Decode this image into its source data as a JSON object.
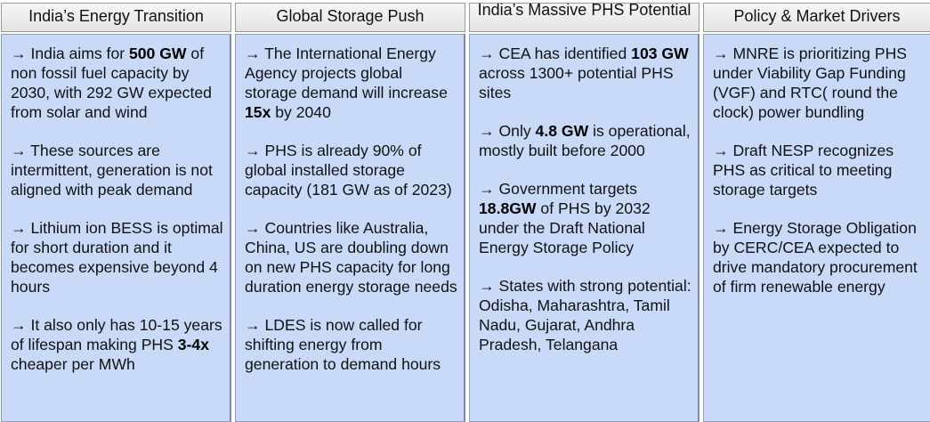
{
  "columns": [
    {
      "title": "India’s Energy Transition",
      "points": [
        {
          "before": "→ India aims for ",
          "bold": "500 GW",
          "after": " of non fossil fuel capacity by 2030, with 292 GW expected from solar and wind"
        },
        {
          "before": "→ These sources are intermittent, generation is not aligned with peak demand",
          "bold": "",
          "after": ""
        },
        {
          "before": "→ Lithium ion BESS is optimal for short duration and it becomes expensive beyond 4 hours",
          "bold": "",
          "after": ""
        },
        {
          "before": "→ It also only has 10-15 years of lifespan making PHS ",
          "bold": "3-4x",
          "after": " cheaper per MWh"
        }
      ]
    },
    {
      "title": "Global Storage Push",
      "points": [
        {
          "before": "→ The International Energy Agency projects global storage demand will increase ",
          "bold": "15x",
          "after": " by 2040"
        },
        {
          "before": "→ PHS is already 90% of global installed storage capacity (181 GW as of 2023)",
          "bold": "",
          "after": ""
        },
        {
          "before": "→ Countries like Australia, China, US are doubling down on new PHS capacity for long duration energy storage needs",
          "bold": "",
          "after": ""
        },
        {
          "before": "→ LDES is now called for shifting energy from generation to demand hours",
          "bold": "",
          "after": ""
        }
      ]
    },
    {
      "title": "India’s Massive PHS Potential",
      "points": [
        {
          "before": "→ CEA has identified ",
          "bold": "103 GW",
          "after": " across 1300+ potential PHS sites"
        },
        {
          "before": "→ Only ",
          "bold": "4.8 GW",
          "after": " is operational, mostly built before 2000"
        },
        {
          "before": "→ Government targets ",
          "bold": "18.8GW",
          "after": " of PHS by 2032 under the Draft National Energy Storage Policy"
        },
        {
          "before": "→ States with strong potential: Odisha, Maharashtra, Tamil Nadu, Gujarat, Andhra Pradesh, Telangana",
          "bold": "",
          "after": ""
        }
      ]
    },
    {
      "title": "Policy & Market Drivers",
      "points": [
        {
          "before": "→ MNRE is prioritizing PHS under Viability Gap Funding (VGF) and RTC( round the clock) power bundling",
          "bold": "",
          "after": ""
        },
        {
          "before": "→ Draft NESP recognizes PHS as critical to meeting storage targets",
          "bold": "",
          "after": ""
        },
        {
          "before": "→ Energy Storage Obligation by CERC/CEA expected to drive mandatory procurement of firm renewable energy",
          "bold": "",
          "after": ""
        }
      ]
    }
  ]
}
